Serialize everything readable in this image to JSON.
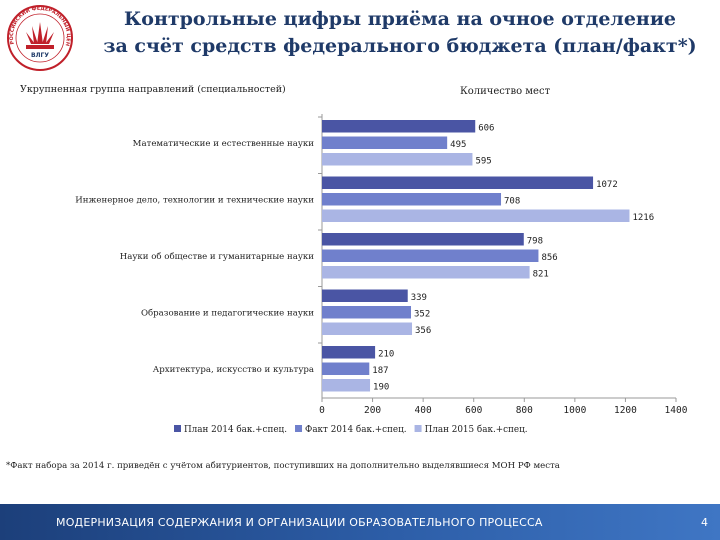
{
  "slide": {
    "title_line1": "Контрольные цифры приёма на очное отделение",
    "title_line2": "за счёт средств федерального бюджета (план/факт*)",
    "left_header": "Укрупненная группа направлений (специальностей)",
    "right_header": "Количество мест",
    "footnote": "*Факт набора за 2014 г. приведён с учётом абитуриентов, поступивших на дополнительно выделявшиеся МОН РФ места",
    "footer_text": "МОДЕРНИЗАЦИЯ СОДЕРЖАНИЯ И ОРГАНИЗАЦИИ ОБРАЗОВАТЕЛЬНОГО ПРОЦЕССА",
    "page_number": "4"
  },
  "logo": {
    "ring_text": "РОССИЙСКИЙ ФЕДЕРАЛЬНЫЙ ЦЕНТР",
    "abbrev": "ВЛГУ",
    "colors": {
      "primary": "#c0202a",
      "secondary": "#1f3a68"
    }
  },
  "chart_data": {
    "type": "bar",
    "orientation": "horizontal",
    "categories": [
      "Математические и естественные науки",
      "Инженерное дело, технологии и технические науки",
      "Науки об обществе и гуманитарные науки",
      "Образование и педагогические науки",
      "Архитектура, искусство и культура"
    ],
    "series": [
      {
        "name": "План 2014 бак.+спец.",
        "color": "#4a55a4",
        "values": [
          606,
          1072,
          798,
          339,
          210
        ]
      },
      {
        "name": "Факт 2014 бак.+спец.",
        "color": "#7080cc",
        "values": [
          495,
          708,
          856,
          352,
          187
        ]
      },
      {
        "name": "План 2015 бак.+спец.",
        "color": "#aab5e4",
        "values": [
          595,
          1216,
          821,
          356,
          190
        ]
      }
    ],
    "xlim": [
      0,
      1400
    ],
    "xticks": [
      "0",
      "200",
      "400",
      "600",
      "800",
      "1000",
      "1200",
      "1400"
    ],
    "xlabel": "",
    "ylabel": "",
    "grid": false,
    "legend": "bottom"
  }
}
